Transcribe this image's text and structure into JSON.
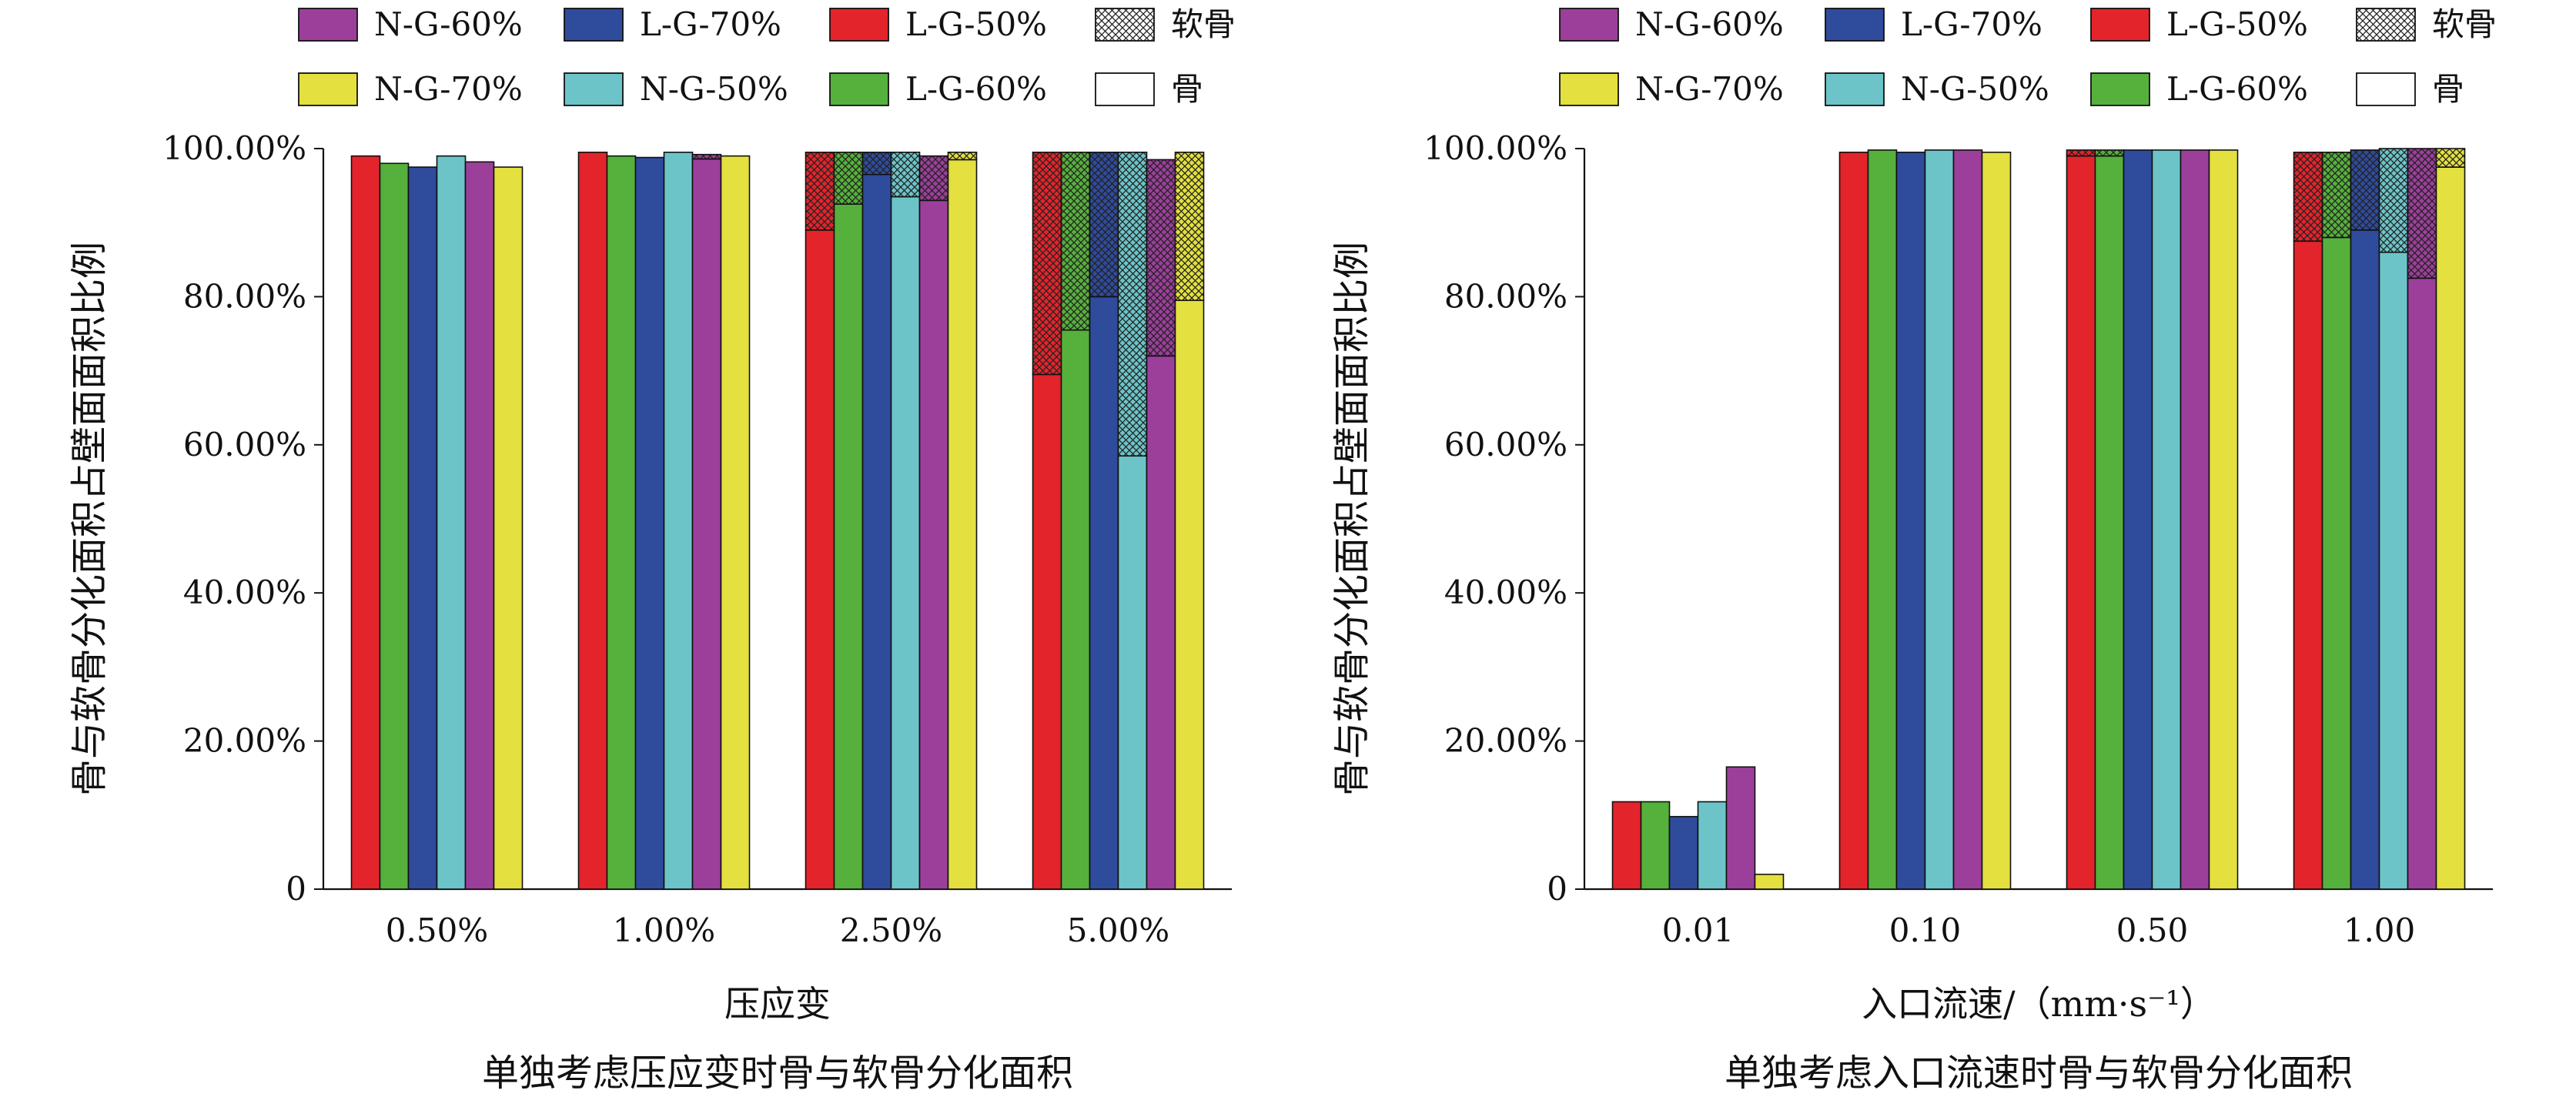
{
  "legend": {
    "entries": [
      {
        "key": "N-G-60%",
        "color": "#9c3f9b"
      },
      {
        "key": "L-G-70%",
        "color": "#2f4b9c"
      },
      {
        "key": "L-G-50%",
        "color": "#e3242b"
      },
      {
        "key": "软骨",
        "pattern": "crosshatch"
      },
      {
        "key": "N-G-70%",
        "color": "#e3e040"
      },
      {
        "key": "N-G-50%",
        "color": "#6cc4c8"
      },
      {
        "key": "L-G-60%",
        "color": "#56b03c"
      },
      {
        "key": "骨",
        "color": "#ffffff"
      }
    ]
  },
  "chart_data": [
    {
      "type": "bar",
      "stacked": true,
      "categories": [
        "0.50%",
        "1.00%",
        "2.50%",
        "5.00%"
      ],
      "series_order": [
        "L-G-50%",
        "L-G-60%",
        "L-G-70%",
        "N-G-50%",
        "N-G-60%",
        "N-G-70%"
      ],
      "series": [
        {
          "name": "L-G-50%",
          "color": "#e3242b",
          "bone": [
            99.0,
            99.5,
            89.0,
            69.5
          ],
          "cartilage": [
            0.0,
            0.0,
            10.5,
            30.0
          ]
        },
        {
          "name": "L-G-60%",
          "color": "#56b03c",
          "bone": [
            98.0,
            99.0,
            92.5,
            75.5
          ],
          "cartilage": [
            0.0,
            0.0,
            7.0,
            24.0
          ]
        },
        {
          "name": "L-G-70%",
          "color": "#2f4b9c",
          "bone": [
            97.5,
            98.8,
            96.5,
            80.0
          ],
          "cartilage": [
            0.0,
            0.0,
            3.0,
            19.5
          ]
        },
        {
          "name": "N-G-50%",
          "color": "#6cc4c8",
          "bone": [
            99.0,
            99.5,
            93.5,
            58.5
          ],
          "cartilage": [
            0.0,
            0.0,
            6.0,
            41.0
          ]
        },
        {
          "name": "N-G-60%",
          "color": "#9c3f9b",
          "bone": [
            98.2,
            98.6,
            93.0,
            72.0
          ],
          "cartilage": [
            0.0,
            0.6,
            6.0,
            26.5
          ]
        },
        {
          "name": "N-G-70%",
          "color": "#e3e040",
          "bone": [
            97.5,
            99.0,
            98.5,
            79.5
          ],
          "cartilage": [
            0.0,
            0.0,
            1.0,
            20.0
          ]
        }
      ],
      "yticks": [
        "0",
        "20.00%",
        "40.00%",
        "60.00%",
        "80.00%",
        "100.00%"
      ],
      "ylim": [
        0,
        100
      ],
      "xlabel": "压应变",
      "ylabel": "骨与软骨分化面积占壁面面积比例",
      "caption": "单独考虑压应变时骨与软骨分化面积"
    },
    {
      "type": "bar",
      "stacked": true,
      "categories": [
        "0.01",
        "0.10",
        "0.50",
        "1.00"
      ],
      "series_order": [
        "L-G-50%",
        "L-G-60%",
        "L-G-70%",
        "N-G-50%",
        "N-G-60%",
        "N-G-70%"
      ],
      "series": [
        {
          "name": "L-G-50%",
          "color": "#e3242b",
          "bone": [
            11.8,
            99.5,
            99.0,
            87.5
          ],
          "cartilage": [
            0.0,
            0.0,
            0.8,
            12.0
          ]
        },
        {
          "name": "L-G-60%",
          "color": "#56b03c",
          "bone": [
            11.8,
            99.8,
            99.0,
            88.0
          ],
          "cartilage": [
            0.0,
            0.0,
            0.8,
            11.5
          ]
        },
        {
          "name": "L-G-70%",
          "color": "#2f4b9c",
          "bone": [
            9.8,
            99.5,
            99.8,
            89.0
          ],
          "cartilage": [
            0.0,
            0.0,
            0.0,
            10.8
          ]
        },
        {
          "name": "N-G-50%",
          "color": "#6cc4c8",
          "bone": [
            11.8,
            99.8,
            99.8,
            86.0
          ],
          "cartilage": [
            0.0,
            0.0,
            0.0,
            14.0
          ]
        },
        {
          "name": "N-G-60%",
          "color": "#9c3f9b",
          "bone": [
            16.5,
            99.8,
            99.8,
            82.5
          ],
          "cartilage": [
            0.0,
            0.0,
            0.0,
            17.5
          ]
        },
        {
          "name": "N-G-70%",
          "color": "#e3e040",
          "bone": [
            2.0,
            99.5,
            99.8,
            97.5
          ],
          "cartilage": [
            0.0,
            0.0,
            0.0,
            2.5
          ]
        }
      ],
      "yticks": [
        "0",
        "20.00%",
        "40.00%",
        "60.00%",
        "80.00%",
        "100.00%"
      ],
      "ylim": [
        0,
        100
      ],
      "xlabel": "入口流速/（mm·s⁻¹）",
      "ylabel": "骨与软骨分化面积占壁面面积比例",
      "caption": "单独考虑入口流速时骨与软骨分化面积"
    }
  ]
}
